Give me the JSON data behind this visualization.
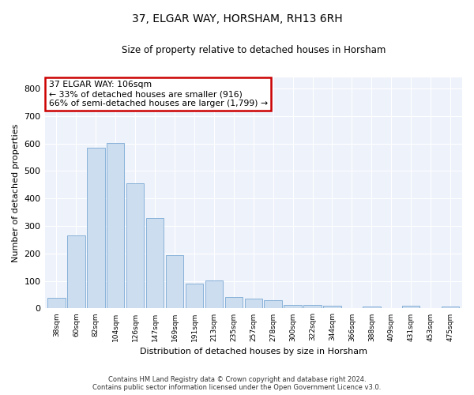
{
  "title": "37, ELGAR WAY, HORSHAM, RH13 6RH",
  "subtitle": "Size of property relative to detached houses in Horsham",
  "xlabel": "Distribution of detached houses by size in Horsham",
  "ylabel": "Number of detached properties",
  "categories": [
    "38sqm",
    "60sqm",
    "82sqm",
    "104sqm",
    "126sqm",
    "147sqm",
    "169sqm",
    "191sqm",
    "213sqm",
    "235sqm",
    "257sqm",
    "278sqm",
    "300sqm",
    "322sqm",
    "344sqm",
    "366sqm",
    "388sqm",
    "409sqm",
    "431sqm",
    "453sqm",
    "475sqm"
  ],
  "values": [
    38,
    265,
    585,
    602,
    455,
    328,
    195,
    90,
    102,
    42,
    35,
    30,
    12,
    13,
    10,
    0,
    7,
    0,
    10,
    0,
    7
  ],
  "bar_color": "#ccddf0",
  "bar_edge_color": "#7aaad4",
  "annotation_text_line1": "37 ELGAR WAY: 106sqm",
  "annotation_text_line2": "← 33% of detached houses are smaller (916)",
  "annotation_text_line3": "66% of semi-detached houses are larger (1,799) →",
  "annotation_box_color": "#ffffff",
  "annotation_box_edge": "#cc0000",
  "ylim": [
    0,
    840
  ],
  "yticks": [
    0,
    100,
    200,
    300,
    400,
    500,
    600,
    700,
    800
  ],
  "background_color": "#eef2fa",
  "footer_line1": "Contains HM Land Registry data © Crown copyright and database right 2024.",
  "footer_line2": "Contains public sector information licensed under the Open Government Licence v3.0."
}
